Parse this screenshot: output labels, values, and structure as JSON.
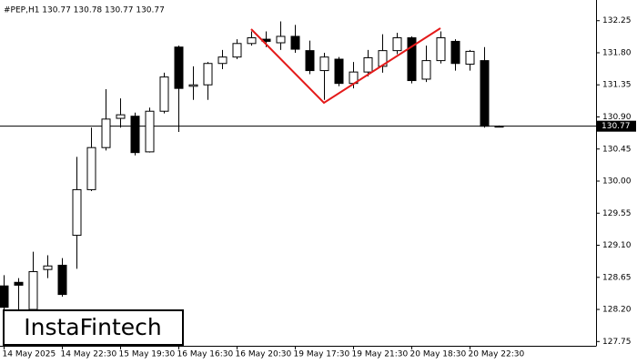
{
  "chart_data": {
    "type": "candlestick",
    "header": "#PEP,H1  130.77 130.78 130.77 130.77",
    "watermark": "InstaFintech",
    "categories": [
      "14 May 2025",
      null,
      null,
      null,
      "14 May 22:30",
      null,
      null,
      null,
      "15 May 19:30",
      null,
      null,
      null,
      "16 May 16:30",
      null,
      null,
      null,
      "16 May 20:30",
      null,
      null,
      null,
      "19 May 17:30",
      null,
      null,
      null,
      "19 May 21:30",
      null,
      null,
      null,
      "20 May 18:30",
      null,
      null,
      null,
      "20 May 22:30",
      null,
      null
    ],
    "open": [
      128.53,
      128.58,
      128.2,
      128.76,
      128.82,
      129.24,
      129.88,
      130.47,
      130.88,
      130.91,
      130.41,
      130.98,
      131.88,
      131.33,
      131.35,
      131.65,
      131.74,
      131.93,
      131.99,
      131.94,
      132.03,
      131.83,
      131.55,
      131.71,
      131.37,
      131.53,
      131.61,
      131.83,
      132.01,
      131.43,
      131.69,
      131.96,
      131.64,
      131.69,
      130.77
    ],
    "high": [
      128.68,
      128.64,
      129.01,
      128.96,
      128.92,
      130.34,
      130.75,
      131.29,
      131.16,
      130.96,
      131.03,
      131.52,
      131.9,
      131.61,
      131.67,
      131.84,
      131.99,
      132.1,
      132.1,
      132.24,
      132.19,
      131.97,
      131.8,
      131.74,
      131.67,
      131.84,
      132.06,
      132.08,
      132.03,
      131.9,
      132.1,
      131.99,
      131.84,
      131.88,
      130.78
    ],
    "low": [
      128.2,
      128.2,
      128.13,
      128.64,
      128.38,
      128.77,
      129.86,
      130.43,
      130.75,
      130.36,
      130.4,
      130.95,
      130.69,
      131.14,
      131.14,
      131.57,
      131.71,
      131.9,
      131.88,
      131.84,
      131.8,
      131.5,
      131.14,
      131.33,
      131.3,
      131.47,
      131.52,
      131.78,
      131.37,
      131.39,
      131.65,
      131.55,
      131.55,
      130.75,
      130.77
    ],
    "close": [
      128.23,
      128.54,
      128.73,
      128.81,
      128.41,
      129.88,
      130.47,
      130.87,
      130.93,
      130.4,
      130.98,
      131.46,
      131.3,
      131.35,
      131.65,
      131.74,
      131.93,
      132.01,
      131.96,
      132.03,
      131.85,
      131.55,
      131.74,
      131.37,
      131.53,
      131.73,
      131.83,
      132.01,
      131.41,
      131.69,
      132.01,
      131.65,
      131.82,
      130.77,
      130.77
    ],
    "ylim": [
      127.69,
      132.54
    ],
    "yticks": [
      132.25,
      {
        "value": 131.8,
        "label": "131.80"
      },
      131.35,
      {
        "value": 130.9,
        "label": "130.90"
      },
      130.45,
      {
        "value": 130.0,
        "label": "130.00"
      },
      129.55,
      {
        "value": 129.1,
        "label": "129.10"
      },
      128.65,
      {
        "value": 128.2,
        "label": "128.20"
      },
      127.75
    ],
    "last_price": {
      "value": 130.77,
      "label": "130.77"
    },
    "up_color": "#ffffff",
    "down_color": "#000000"
  }
}
